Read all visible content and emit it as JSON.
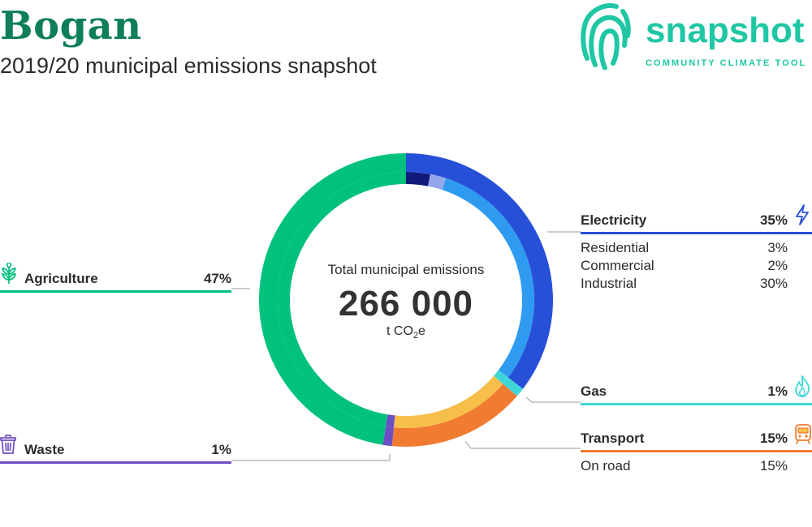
{
  "header": {
    "title": "Bogan",
    "subtitle": "2019/20 municipal emissions snapshot"
  },
  "brand": {
    "name": "snapshot",
    "tagline": "COMMUNITY CLIMATE TOOL",
    "logo_icon": "fingerprint-icon"
  },
  "center": {
    "title": "Total municipal emissions",
    "value": "266 000",
    "unit_prefix": "t CO",
    "unit_sub": "2",
    "unit_suffix": "e"
  },
  "colors": {
    "agriculture": "#00c27c",
    "electricity": "#2750d8",
    "gas": "#3fd6d8",
    "transport": "#f17b30",
    "waste": "#6c4fc4",
    "residential": "#111a7a",
    "commercial": "#93a6ec",
    "industrial": "#2f9bf0",
    "on_road": "#f7bf4a"
  },
  "categories": {
    "electricity": {
      "label": "Electricity",
      "pct": "35%",
      "icon": "lightning-icon",
      "subs": [
        {
          "label": "Residential",
          "pct": "3%"
        },
        {
          "label": "Commercial",
          "pct": "2%"
        },
        {
          "label": "Industrial",
          "pct": "30%"
        }
      ]
    },
    "gas": {
      "label": "Gas",
      "pct": "1%",
      "icon": "flame-icon"
    },
    "transport": {
      "label": "Transport",
      "pct": "15%",
      "icon": "train-icon",
      "subs": [
        {
          "label": "On road",
          "pct": "15%"
        }
      ]
    },
    "agriculture": {
      "label": "Agriculture",
      "pct": "47%",
      "icon": "sprout-icon"
    },
    "waste": {
      "label": "Waste",
      "pct": "1%",
      "icon": "bin-icon"
    }
  },
  "chart_data": {
    "type": "pie",
    "title": "Total municipal emissions",
    "total": 266000,
    "unit": "t CO2e",
    "series": [
      {
        "name": "Electricity",
        "value": 35,
        "key": "electricity",
        "subs": [
          {
            "name": "Residential",
            "value": 3,
            "key": "residential"
          },
          {
            "name": "Commercial",
            "value": 2,
            "key": "commercial"
          },
          {
            "name": "Industrial",
            "value": 30,
            "key": "industrial"
          }
        ]
      },
      {
        "name": "Gas",
        "value": 1,
        "key": "gas",
        "subs": [
          {
            "name": "Gas",
            "value": 1,
            "key": "gas"
          }
        ]
      },
      {
        "name": "Transport",
        "value": 15,
        "key": "transport",
        "subs": [
          {
            "name": "On road",
            "value": 15,
            "key": "on_road"
          }
        ]
      },
      {
        "name": "Waste",
        "value": 1,
        "key": "waste",
        "subs": [
          {
            "name": "Waste",
            "value": 1,
            "key": "waste"
          }
        ]
      },
      {
        "name": "Agriculture",
        "value": 47,
        "key": "agriculture",
        "subs": [
          {
            "name": "Agriculture",
            "value": 47,
            "key": "agriculture"
          }
        ]
      }
    ]
  }
}
